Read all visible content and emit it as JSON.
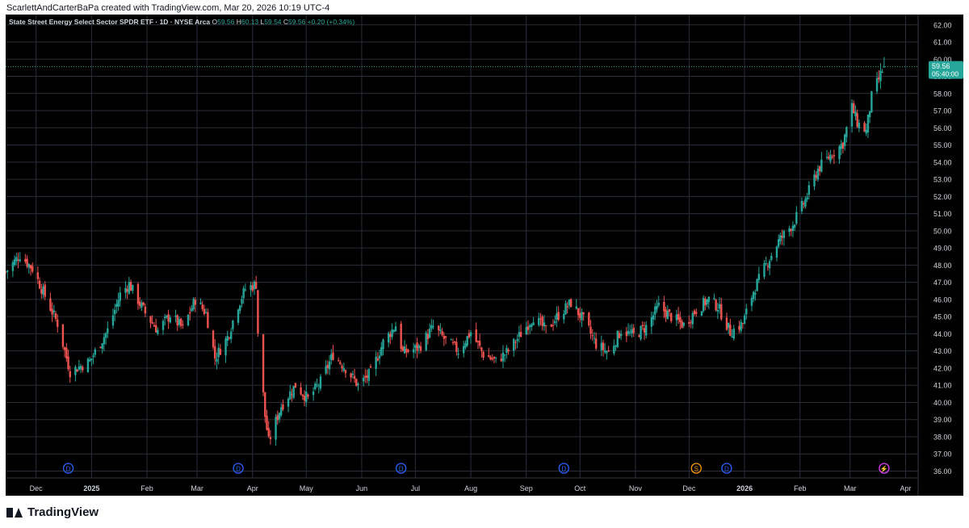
{
  "header": {
    "credit": "ScarlettAndCarterBaPa created with TradingView.com, Mar 20, 2026 10:19 UTC-4",
    "symbol_line": "State Street Energy Select Sector SPDR ETF · 1D · NYSE Arca",
    "o_label": "O",
    "o_value": "59.56",
    "h_label": "H",
    "h_value": "60.13",
    "l_label": "L",
    "l_value": "59.54",
    "c_label": "C",
    "c_value": "59.56",
    "change": "+0.20 (+0.34%)"
  },
  "price_tag": {
    "price": "59.56",
    "countdown": "05:40:00"
  },
  "footer": {
    "brand": "TradingView"
  },
  "colors": {
    "up": "#26a69a",
    "down": "#ef5350",
    "background": "#000000",
    "grid": "#2a2e39",
    "axis_text": "#d1d4dc"
  },
  "chart_data": {
    "type": "candlestick",
    "title": "State Street Energy Select Sector SPDR ETF · 1D · NYSE Arca",
    "x_range": [
      "2024-11-14",
      "2026-04-08"
    ],
    "ylim": [
      35.6,
      62.6
    ],
    "y_ticks": [
      "36.00",
      "37.00",
      "38.00",
      "39.00",
      "40.00",
      "41.00",
      "42.00",
      "43.00",
      "44.00",
      "45.00",
      "46.00",
      "47.00",
      "48.00",
      "49.00",
      "50.00",
      "51.00",
      "52.00",
      "53.00",
      "54.00",
      "55.00",
      "56.00",
      "57.00",
      "58.00",
      "59.00",
      "60.00",
      "61.00",
      "62.00"
    ],
    "x_ticks": [
      {
        "label": "Dec",
        "date": "2024-12-01"
      },
      {
        "label": "2025",
        "date": "2025-01-01"
      },
      {
        "label": "Feb",
        "date": "2025-02-01"
      },
      {
        "label": "Mar",
        "date": "2025-03-01"
      },
      {
        "label": "Apr",
        "date": "2025-04-01"
      },
      {
        "label": "May",
        "date": "2025-05-01"
      },
      {
        "label": "Jun",
        "date": "2025-06-01"
      },
      {
        "label": "Jul",
        "date": "2025-07-01"
      },
      {
        "label": "Aug",
        "date": "2025-08-01"
      },
      {
        "label": "Sep",
        "date": "2025-09-01"
      },
      {
        "label": "Oct",
        "date": "2025-10-01"
      },
      {
        "label": "Nov",
        "date": "2025-11-01"
      },
      {
        "label": "Dec",
        "date": "2025-12-01"
      },
      {
        "label": "2026",
        "date": "2026-01-01"
      },
      {
        "label": "Feb",
        "date": "2026-02-01"
      },
      {
        "label": "Mar",
        "date": "2026-03-01"
      },
      {
        "label": "Apr",
        "date": "2026-04-01"
      }
    ],
    "markers": [
      {
        "date": "2024-12-19",
        "letter": "D",
        "color": "#2962ff"
      },
      {
        "date": "2025-03-24",
        "letter": "D",
        "color": "#2962ff"
      },
      {
        "date": "2025-06-23",
        "letter": "D",
        "color": "#2962ff"
      },
      {
        "date": "2025-09-22",
        "letter": "D",
        "color": "#2962ff"
      },
      {
        "date": "2025-12-05",
        "letter": "S",
        "color": "#ff9800"
      },
      {
        "date": "2025-12-22",
        "letter": "D",
        "color": "#2962ff"
      },
      {
        "date": "2026-03-20",
        "letter": "⚡",
        "color": "#e040fb"
      }
    ],
    "last_price": 59.56,
    "close_waypoints": [
      [
        "2024-11-14",
        47.6
      ],
      [
        "2024-11-22",
        48.6
      ],
      [
        "2024-11-29",
        47.8
      ],
      [
        "2024-12-06",
        46.2
      ],
      [
        "2024-12-13",
        44.6
      ],
      [
        "2024-12-20",
        41.8
      ],
      [
        "2024-12-31",
        42.4
      ],
      [
        "2025-01-10",
        44.2
      ],
      [
        "2025-01-17",
        46.3
      ],
      [
        "2025-01-22",
        46.9
      ],
      [
        "2025-01-31",
        45.2
      ],
      [
        "2025-02-07",
        44.2
      ],
      [
        "2025-02-14",
        45.1
      ],
      [
        "2025-02-21",
        44.3
      ],
      [
        "2025-02-28",
        46.0
      ],
      [
        "2025-03-06",
        45.2
      ],
      [
        "2025-03-11",
        42.6
      ],
      [
        "2025-03-18",
        43.8
      ],
      [
        "2025-03-24",
        45.7
      ],
      [
        "2025-03-28",
        46.6
      ],
      [
        "2025-04-03",
        46.9
      ],
      [
        "2025-04-04",
        44.1
      ],
      [
        "2025-04-08",
        39.2
      ],
      [
        "2025-04-10",
        37.7
      ],
      [
        "2025-04-17",
        39.8
      ],
      [
        "2025-04-25",
        41.0
      ],
      [
        "2025-05-02",
        40.2
      ],
      [
        "2025-05-09",
        41.2
      ],
      [
        "2025-05-16",
        42.8
      ],
      [
        "2025-05-23",
        42.0
      ],
      [
        "2025-05-30",
        41.0
      ],
      [
        "2025-06-06",
        41.7
      ],
      [
        "2025-06-13",
        43.5
      ],
      [
        "2025-06-20",
        44.5
      ],
      [
        "2025-06-24",
        42.9
      ],
      [
        "2025-07-03",
        43.2
      ],
      [
        "2025-07-11",
        44.4
      ],
      [
        "2025-07-18",
        43.6
      ],
      [
        "2025-07-25",
        43.0
      ],
      [
        "2025-08-01",
        44.1
      ],
      [
        "2025-08-08",
        42.8
      ],
      [
        "2025-08-15",
        42.4
      ],
      [
        "2025-08-22",
        43.0
      ],
      [
        "2025-08-29",
        44.0
      ],
      [
        "2025-09-05",
        45.0
      ],
      [
        "2025-09-12",
        44.2
      ],
      [
        "2025-09-19",
        45.1
      ],
      [
        "2025-09-26",
        45.8
      ],
      [
        "2025-10-03",
        44.8
      ],
      [
        "2025-10-10",
        43.4
      ],
      [
        "2025-10-17",
        42.9
      ],
      [
        "2025-10-24",
        44.2
      ],
      [
        "2025-10-31",
        43.9
      ],
      [
        "2025-11-07",
        44.4
      ],
      [
        "2025-11-14",
        45.6
      ],
      [
        "2025-11-21",
        45.0
      ],
      [
        "2025-11-28",
        44.5
      ],
      [
        "2025-12-05",
        45.4
      ],
      [
        "2025-12-12",
        46.0
      ],
      [
        "2025-12-17",
        45.6
      ],
      [
        "2025-12-24",
        44.1
      ],
      [
        "2025-12-31",
        44.6
      ],
      [
        "2026-01-06",
        46.5
      ],
      [
        "2026-01-12",
        47.8
      ],
      [
        "2026-01-20",
        49.4
      ],
      [
        "2026-01-28",
        50.4
      ],
      [
        "2026-02-04",
        51.8
      ],
      [
        "2026-02-11",
        53.6
      ],
      [
        "2026-02-18",
        54.4
      ],
      [
        "2026-02-25",
        55.1
      ],
      [
        "2026-03-02",
        57.2
      ],
      [
        "2026-03-05",
        56.3
      ],
      [
        "2026-03-10",
        55.8
      ],
      [
        "2026-03-13",
        57.8
      ],
      [
        "2026-03-18",
        59.1
      ],
      [
        "2026-03-20",
        59.56
      ]
    ]
  }
}
